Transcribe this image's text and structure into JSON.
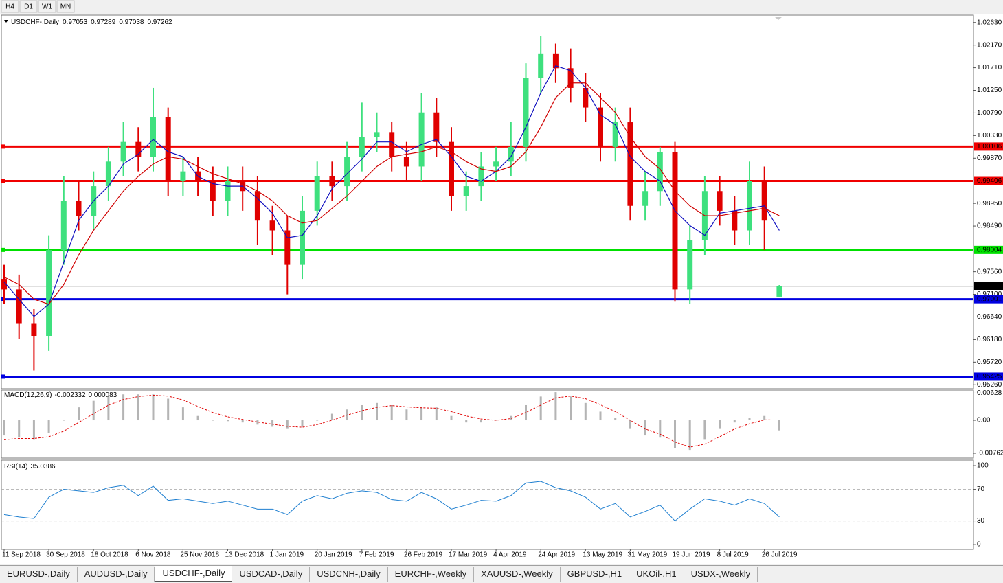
{
  "toolbar": [
    "H4",
    "D1",
    "W1",
    "MN"
  ],
  "chart_data": [
    {
      "type": "candlestick",
      "symbol": "USDCHF-,Daily",
      "categories": [
        "11 Sep 2018",
        null,
        null,
        "30 Sep 2018",
        null,
        null,
        "18 Oct 2018",
        null,
        null,
        "6 Nov 2018",
        null,
        null,
        "25 Nov 2018",
        null,
        null,
        "13 Dec 2018",
        null,
        null,
        "1 Jan 2019",
        null,
        null,
        "20 Jan 2019",
        null,
        null,
        "7 Feb 2019",
        null,
        null,
        "26 Feb 2019",
        null,
        null,
        "17 Mar 2019",
        null,
        null,
        "4 Apr 2019",
        null,
        null,
        "24 Apr 2019",
        null,
        null,
        "13 May 2019",
        null,
        null,
        "31 May 2019",
        null,
        null,
        "19 Jun 2019",
        null,
        null,
        "8 Jul 2019",
        null,
        null,
        "26 Jul 2019",
        null
      ],
      "open": [
        0.974,
        0.972,
        0.965,
        0.9625,
        0.98,
        0.99,
        0.987,
        0.993,
        0.998,
        1.002,
        0.999,
        1.007,
        0.994,
        0.996,
        0.994,
        0.99,
        0.994,
        0.992,
        0.986,
        0.984,
        0.977,
        0.988,
        0.995,
        0.993,
        0.999,
        1.003,
        1.004,
        0.999,
        0.997,
        1.008,
        1.002,
        0.991,
        0.993,
        0.997,
        0.998,
        1.001,
        1.015,
        1.02,
        1.017,
        1.013,
        1.009,
        1.001,
        1.006,
        0.989,
        0.992,
        1.0,
        0.972,
        0.982,
        0.992,
        0.988,
        0.984,
        0.994,
        0.97053
      ],
      "high": [
        0.977,
        0.975,
        0.968,
        0.983,
        0.995,
        0.994,
        0.996,
        1.001,
        1.006,
        1.005,
        1.013,
        1.009,
        0.999,
        0.999,
        0.997,
        0.997,
        0.997,
        0.995,
        0.989,
        0.987,
        0.991,
        0.998,
        0.998,
        1.002,
        1.01,
        1.008,
        1.006,
        1.002,
        1.012,
        1.011,
        1.005,
        0.996,
        1.0,
        1.001,
        1.006,
        1.018,
        1.0235,
        1.022,
        1.021,
        1.016,
        1.012,
        1.009,
        1.009,
        0.996,
        1.001,
        1.002,
        0.985,
        0.995,
        0.995,
        0.991,
        0.998,
        0.997,
        0.97289
      ],
      "low": [
        0.969,
        0.962,
        0.9555,
        0.9595,
        0.977,
        0.984,
        0.984,
        0.99,
        0.995,
        0.996,
        0.996,
        0.991,
        0.991,
        0.991,
        0.987,
        0.987,
        0.988,
        0.981,
        0.979,
        0.971,
        0.974,
        0.985,
        0.99,
        0.99,
        0.996,
        1.0,
        0.996,
        0.994,
        0.994,
        0.999,
        0.988,
        0.988,
        0.99,
        0.994,
        0.995,
        0.998,
        1.012,
        1.014,
        1.01,
        1.006,
        0.998,
        0.998,
        0.986,
        0.986,
        0.989,
        0.9695,
        0.969,
        0.979,
        0.985,
        0.981,
        0.981,
        0.98,
        0.97038
      ],
      "close": [
        0.972,
        0.965,
        0.9625,
        0.98,
        0.99,
        0.987,
        0.993,
        0.998,
        1.002,
        0.999,
        1.007,
        0.994,
        0.996,
        0.994,
        0.99,
        0.994,
        0.992,
        0.986,
        0.984,
        0.977,
        0.988,
        0.995,
        0.993,
        0.999,
        1.003,
        1.004,
        0.999,
        0.997,
        1.008,
        1.002,
        0.991,
        0.993,
        0.997,
        0.998,
        1.001,
        1.015,
        1.02,
        1.017,
        1.013,
        1.009,
        1.001,
        1.006,
        0.989,
        0.992,
        1.0,
        0.972,
        0.982,
        0.992,
        0.988,
        0.984,
        0.994,
        0.986,
        0.97262
      ],
      "up_color": "#3ee07e",
      "down_color": "#e00000",
      "overlays": [
        {
          "color": "#1010c0",
          "values": [
            0.9735,
            0.97,
            0.9665,
            0.969,
            0.9775,
            0.986,
            0.99,
            0.993,
            0.9975,
            0.9995,
            1.0025,
            1.0,
            0.999,
            0.995,
            0.9935,
            0.993,
            0.993,
            0.9905,
            0.9875,
            0.9825,
            0.983,
            0.987,
            0.9925,
            0.9955,
            0.9985,
            1.002,
            1.002,
            1.0,
            1.0015,
            1.0025,
            0.999,
            0.995,
            0.994,
            0.996,
            0.999,
            1.005,
            1.012,
            1.0175,
            1.0165,
            1.013,
            1.0075,
            1.0055,
            0.999,
            0.996,
            0.994,
            0.988,
            0.985,
            0.983,
            0.9875,
            0.988,
            0.9885,
            0.989,
            0.984
          ]
        },
        {
          "color": "#d00000",
          "values": [
            0.9745,
            0.973,
            0.97,
            0.969,
            0.973,
            0.979,
            0.984,
            0.988,
            0.992,
            0.995,
            0.9975,
            0.999,
            0.9985,
            0.997,
            0.9955,
            0.9945,
            0.9935,
            0.992,
            0.99,
            0.987,
            0.9855,
            0.986,
            0.9885,
            0.991,
            0.994,
            0.997,
            0.999,
            0.9995,
            1.0,
            1.001,
            1.0,
            0.998,
            0.9965,
            0.996,
            0.997,
            1.0,
            1.005,
            1.011,
            1.014,
            1.014,
            1.011,
            1.008,
            1.003,
            0.999,
            0.9965,
            0.992,
            0.989,
            0.987,
            0.987,
            0.9875,
            0.988,
            0.9885,
            0.987
          ]
        }
      ],
      "levels": [
        {
          "value": 1.00106,
          "color": "#f00000"
        },
        {
          "value": 0.99406,
          "color": "#f00000"
        },
        {
          "value": 0.98004,
          "color": "#00e000"
        },
        {
          "value": 0.97001,
          "color": "#0000e0"
        },
        {
          "value": 0.95425,
          "color": "#0000e0"
        }
      ],
      "ylim": [
        0.9518,
        1.0278
      ],
      "yticks": [
        {
          "value": 1.0263,
          "label": "1.02630"
        },
        {
          "value": 1.0217,
          "label": "1.02170"
        },
        {
          "value": 1.0171,
          "label": "1.01710"
        },
        {
          "value": 1.0125,
          "label": "1.01250"
        },
        {
          "value": 1.0079,
          "label": "1.00790"
        },
        {
          "value": 1.0033,
          "label": "1.00330"
        },
        {
          "value": 0.9987,
          "label": "0.99870"
        },
        {
          "value": 0.9895,
          "label": "0.98950"
        },
        {
          "value": 0.9849,
          "label": "0.98490"
        },
        {
          "value": 0.9756,
          "label": "0.97560"
        },
        {
          "value": 0.971,
          "label": "0.97100"
        },
        {
          "value": 0.9664,
          "label": "0.96640"
        },
        {
          "value": 0.9618,
          "label": "0.96180"
        },
        {
          "value": 0.9572,
          "label": "0.95720"
        },
        {
          "value": 0.9526,
          "label": "0.95260"
        }
      ]
    },
    {
      "type": "macd",
      "label": "MACD(12,26,9)",
      "color": "#b4b4b4",
      "signal_color": "#e00000",
      "values": [
        -0.0035,
        -0.004,
        -0.0045,
        -0.003,
        0.0,
        0.003,
        0.0045,
        0.0055,
        0.006,
        0.006,
        0.006,
        0.005,
        0.003,
        0.001,
        0.0,
        -0.0002,
        -0.0005,
        -0.001,
        -0.0015,
        -0.002,
        -0.0015,
        0.0,
        0.0015,
        0.0025,
        0.0035,
        0.004,
        0.0035,
        0.0025,
        0.003,
        0.003,
        0.001,
        -0.0005,
        -0.0005,
        0.0,
        0.001,
        0.0035,
        0.0055,
        0.0065,
        0.0055,
        0.004,
        0.002,
        0.0005,
        -0.002,
        -0.0035,
        -0.004,
        -0.0065,
        -0.007,
        -0.0045,
        -0.002,
        -0.0005,
        0.0005,
        0.001,
        -0.002332
      ],
      "signal": [
        -0.0045,
        -0.0042,
        -0.0042,
        -0.0038,
        -0.0025,
        -0.0005,
        0.0015,
        0.0035,
        0.0048,
        0.0055,
        0.0058,
        0.0056,
        0.0047,
        0.0032,
        0.0018,
        0.0008,
        0.0002,
        -0.0004,
        -0.0009,
        -0.0014,
        -0.0016,
        -0.001,
        0.0,
        0.0012,
        0.0022,
        0.003,
        0.0034,
        0.0031,
        0.0029,
        0.0028,
        0.002,
        0.001,
        0.0003,
        0.0,
        0.0004,
        0.0018,
        0.0035,
        0.0052,
        0.0056,
        0.005,
        0.0036,
        0.002,
        0.0,
        -0.002,
        -0.0032,
        -0.005,
        -0.0062,
        -0.0055,
        -0.0038,
        -0.002,
        -0.0008,
        0.0001,
        8.3e-05
      ],
      "ylim": [
        -0.00873,
        0.00699
      ],
      "yticks": [
        0.00628,
        {
          "value": 0,
          "label": "0.00"
        },
        -0.00762
      ]
    },
    {
      "type": "line",
      "label": "RSI(14)",
      "color": "#1e7fd0",
      "values": [
        38,
        35,
        33,
        60,
        70,
        68,
        66,
        72,
        75,
        62,
        74,
        56,
        58,
        55,
        52,
        55,
        50,
        45,
        45,
        38,
        55,
        62,
        58,
        65,
        68,
        66,
        57,
        55,
        66,
        58,
        45,
        50,
        56,
        55,
        62,
        78,
        80,
        72,
        68,
        60,
        45,
        52,
        35,
        42,
        50,
        30,
        45,
        58,
        55,
        50,
        58,
        52,
        35.0386
      ],
      "levels": [
        70,
        30
      ],
      "ylim": [
        -6,
        107
      ],
      "yticks": [
        100,
        70,
        30,
        0
      ]
    }
  ],
  "tabs": [
    "EURUSD-,Daily",
    "AUDUSD-,Daily",
    "USDCHF-,Daily",
    "USDCAD-,Daily",
    "USDCNH-,Daily",
    "EURCHF-,Weekly",
    "XAUUSD-,Weekly",
    "GBPUSD-,H1",
    "UKOil-,H1",
    "USDX-,Weekly"
  ]
}
